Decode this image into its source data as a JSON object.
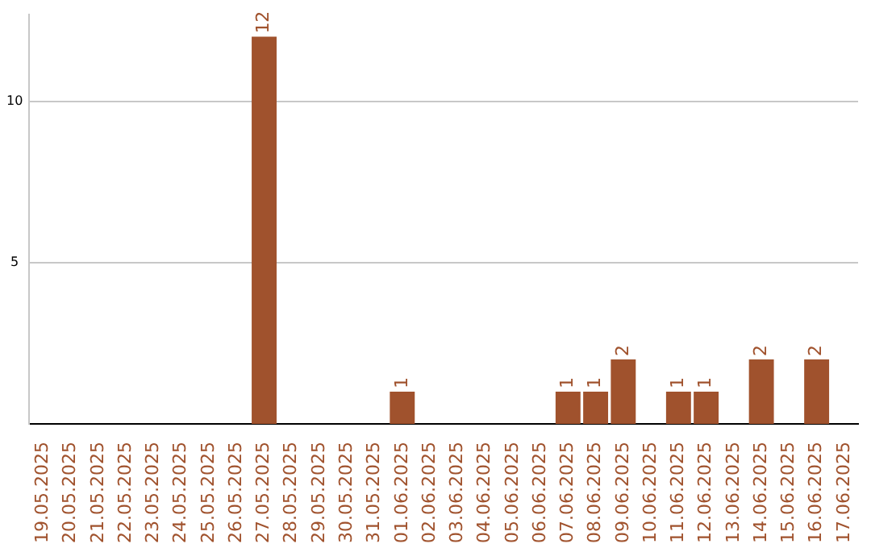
{
  "chart_data": {
    "type": "bar",
    "categories": [
      "19.05.2025",
      "20.05.2025",
      "21.05.2025",
      "22.05.2025",
      "23.05.2025",
      "24.05.2025",
      "25.05.2025",
      "26.05.2025",
      "27.05.2025",
      "28.05.2025",
      "29.05.2025",
      "30.05.2025",
      "31.05.2025",
      "01.06.2025",
      "02.06.2025",
      "03.06.2025",
      "04.06.2025",
      "05.06.2025",
      "06.06.2025",
      "07.06.2025",
      "08.06.2025",
      "09.06.2025",
      "10.06.2025",
      "11.06.2025",
      "12.06.2025",
      "13.06.2025",
      "14.06.2025",
      "15.06.2025",
      "16.06.2025",
      "17.06.2025"
    ],
    "values": [
      0,
      0,
      0,
      0,
      0,
      0,
      0,
      0,
      12,
      0,
      0,
      0,
      0,
      1,
      0,
      0,
      0,
      0,
      0,
      1,
      1,
      2,
      0,
      1,
      1,
      0,
      2,
      0,
      2,
      0
    ],
    "value_labels": [
      null,
      null,
      null,
      null,
      null,
      null,
      null,
      null,
      "12",
      null,
      null,
      null,
      null,
      "1",
      null,
      null,
      null,
      null,
      null,
      "1",
      "1",
      "2",
      null,
      "1",
      "1",
      null,
      "2",
      null,
      "2",
      null
    ],
    "color": "#a0522d",
    "ylim": [
      0,
      12.7
    ],
    "yticks": [
      5,
      10
    ],
    "grid": "y",
    "legend": false
  }
}
